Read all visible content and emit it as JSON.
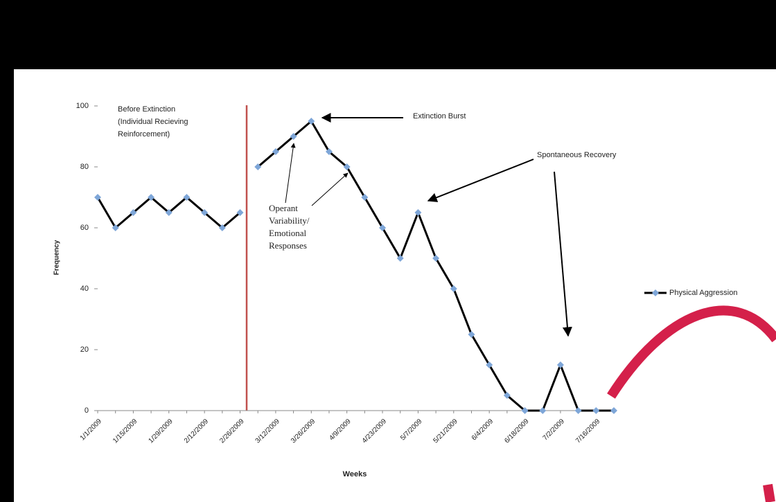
{
  "chart_data": {
    "type": "line",
    "x_label": "Weeks",
    "y_label": "Frequency",
    "categories": [
      "1/1/2009",
      null,
      "1/15/2009",
      null,
      "1/29/2009",
      null,
      "2/12/2009",
      null,
      "2/26/2009",
      null,
      "3/12/2009",
      null,
      "3/26/2009",
      null,
      "4/9/2009",
      null,
      "4/23/2009",
      null,
      "5/7/2009",
      null,
      "5/21/2009",
      null,
      "6/4/2009",
      null,
      "6/18/2009",
      null,
      "7/2/2009",
      null,
      "7/16/2009",
      null
    ],
    "series": [
      {
        "name": "Physical Aggression",
        "color": "#7ea6d8",
        "values": [
          70,
          60,
          65,
          70,
          65,
          70,
          65,
          60,
          65,
          80,
          85,
          90,
          95,
          85,
          80,
          70,
          60,
          50,
          65,
          50,
          40,
          25,
          15,
          5,
          0,
          0,
          15,
          0,
          0,
          0
        ]
      }
    ],
    "ylim": [
      0,
      100
    ],
    "yticks": [
      0,
      20,
      40,
      60,
      80,
      100
    ],
    "annotations": {
      "before": [
        "Before Extinction",
        "(Individual Recieving",
        "Reinforcement)"
      ],
      "burst": "Extinction Burst",
      "recovery": "Spontaneous Recovery",
      "variability": [
        "Operant",
        "Variability/",
        "Emotional",
        "Responses"
      ]
    }
  }
}
